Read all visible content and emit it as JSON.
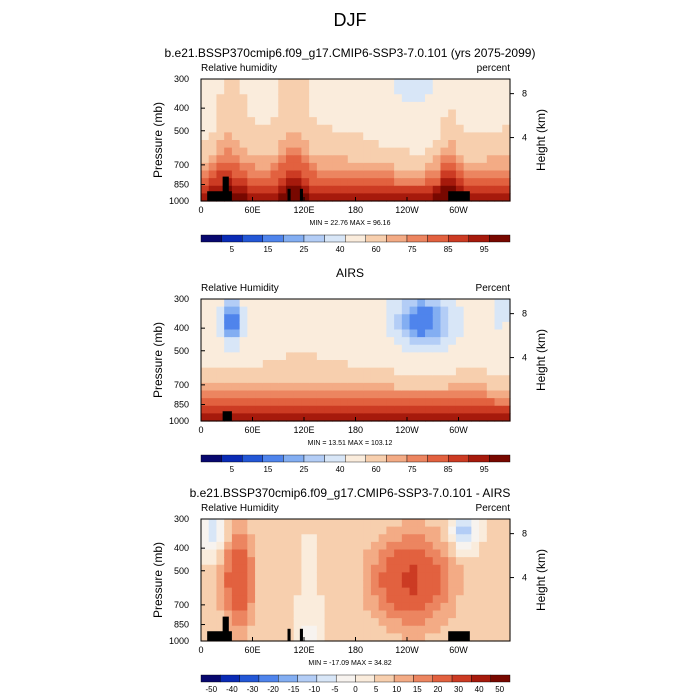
{
  "figure": {
    "title": "DJF",
    "colors": {
      "rh": [
        "#08086f",
        "#0a2bb5",
        "#2357d6",
        "#4f84ec",
        "#83aef2",
        "#b3cdf6",
        "#d8e6f7",
        "#faecdc",
        "#f7cfae",
        "#f3ab85",
        "#ec8560",
        "#e2613f",
        "#cc3b23",
        "#a61a0c",
        "#780800"
      ],
      "diff": [
        "#08086f",
        "#0a2bb5",
        "#2357d6",
        "#4f84ec",
        "#83aef2",
        "#b3cdf6",
        "#d8e6f7",
        "#f7f3ef",
        "#faecdc",
        "#f7cfae",
        "#f3ab85",
        "#ec8560",
        "#e2613f",
        "#cc3b23",
        "#a61a0c",
        "#780800"
      ]
    }
  },
  "chart_data": [
    {
      "type": "heatmap",
      "name": "model",
      "title": "b.e21.BSSP370cmip6.f09_g17.CMIP6-SSP3-7.0.101 (yrs 2075-2099)",
      "left_label": "Relative humidity",
      "right_label": "percent",
      "ylabel": "Pressure (mb)",
      "ylabel_right": "Height (km)",
      "x_ticks": [
        "0",
        "60E",
        "120E",
        "180",
        "120W",
        "60W"
      ],
      "y_ticks": [
        "300",
        "400",
        "500",
        "700",
        "850",
        "1000"
      ],
      "y2_ticks": [
        "8",
        "4"
      ],
      "ylim": [
        1000,
        300
      ],
      "stats": "MIN = 22.76  MAX = 96.16",
      "colorbar_labels": [
        "5",
        "15",
        "25",
        "40",
        "60",
        "75",
        "85",
        "95"
      ],
      "colorbar_levels": [
        0,
        5,
        10,
        15,
        20,
        25,
        30,
        40,
        50,
        60,
        70,
        75,
        80,
        85,
        90,
        95,
        100
      ]
    },
    {
      "type": "heatmap",
      "name": "obs",
      "title": "AIRS",
      "left_label": "Relative Humidity",
      "right_label": "Percent",
      "ylabel": "Pressure (mb)",
      "ylabel_right": "Height (km)",
      "x_ticks": [
        "0",
        "60E",
        "120E",
        "180",
        "120W",
        "60W"
      ],
      "y_ticks": [
        "300",
        "400",
        "500",
        "700",
        "850",
        "1000"
      ],
      "y2_ticks": [
        "8",
        "4"
      ],
      "ylim": [
        1000,
        300
      ],
      "stats": "MIN = 13.51  MAX = 103.12",
      "colorbar_labels": [
        "5",
        "15",
        "25",
        "40",
        "60",
        "75",
        "85",
        "95"
      ],
      "colorbar_levels": [
        0,
        5,
        10,
        15,
        20,
        25,
        30,
        40,
        50,
        60,
        70,
        75,
        80,
        85,
        90,
        95,
        100
      ]
    },
    {
      "type": "heatmap",
      "name": "diff",
      "title": "b.e21.BSSP370cmip6.f09_g17.CMIP6-SSP3-7.0.101 - AIRS",
      "left_label": "Relative Humidity",
      "right_label": "Percent",
      "ylabel": "Pressure (mb)",
      "ylabel_right": "Height (km)",
      "x_ticks": [
        "0",
        "60E",
        "120E",
        "180",
        "120W",
        "60W"
      ],
      "y_ticks": [
        "300",
        "400",
        "500",
        "700",
        "850",
        "1000"
      ],
      "y2_ticks": [
        "8",
        "4"
      ],
      "ylim": [
        1000,
        300
      ],
      "stats": "MIN = -17.09  MAX = 34.82",
      "colorbar_labels": [
        "-50",
        "-40",
        "-30",
        "-20",
        "-15",
        "-10",
        "-5",
        "0",
        "5",
        "10",
        "15",
        "20",
        "30",
        "40",
        "50"
      ],
      "colorbar_levels": [
        -60,
        -50,
        -40,
        -30,
        -20,
        -15,
        -10,
        -5,
        0,
        5,
        10,
        15,
        20,
        30,
        40,
        50,
        60
      ]
    }
  ]
}
